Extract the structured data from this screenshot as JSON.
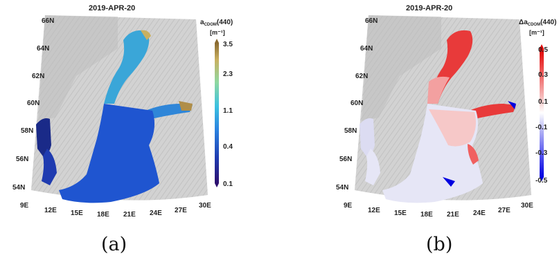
{
  "panels": [
    {
      "id": "a",
      "title": "2019-APR-20",
      "colorbar": {
        "title_main": "a",
        "title_sub": "CDOM",
        "title_tail": "(440)",
        "units": "[m⁻¹]",
        "ticks": [
          "3.5",
          "2.3",
          "1.1",
          "0.4",
          "0.1"
        ],
        "colors": [
          "#2d0f6e",
          "#1f3bb0",
          "#2a82e0",
          "#3cc2e0",
          "#8fd8a0",
          "#c9b060",
          "#8a6a30"
        ]
      },
      "caption": "(a)"
    },
    {
      "id": "b",
      "title": "2019-APR-20",
      "colorbar": {
        "title_main": "Δa",
        "title_sub": "CDOM",
        "title_tail": "(440)",
        "units": "[m⁻¹]",
        "ticks": [
          "0.5",
          "0.3",
          "0.1",
          "-0.1",
          "-0.3",
          "-0.5"
        ],
        "colors": [
          "#0000e0",
          "#6060f0",
          "#c8c8f6",
          "#ffffff",
          "#f6c8c8",
          "#f06060",
          "#e00000"
        ]
      },
      "caption": "(b)"
    }
  ],
  "map_labels": {
    "lat": [
      "66N",
      "64N",
      "62N",
      "60N",
      "58N",
      "56N",
      "54N"
    ],
    "lon": [
      "9E",
      "12E",
      "15E",
      "18E",
      "21E",
      "24E",
      "27E",
      "30E"
    ]
  },
  "colors": {
    "land": "#d2d2d2",
    "land_relief": "#b4b4b4",
    "sea_a": "#1f55d0",
    "sea_a_north": "#3a9ad6",
    "sea_a_finland": "#2f86d8",
    "sea_a_skagerrak": "#1a2a88",
    "sea_b_south": "#e6e6f6",
    "sea_b_north": "#e83a3a",
    "sea_b_mid": "#f3a0a0"
  }
}
